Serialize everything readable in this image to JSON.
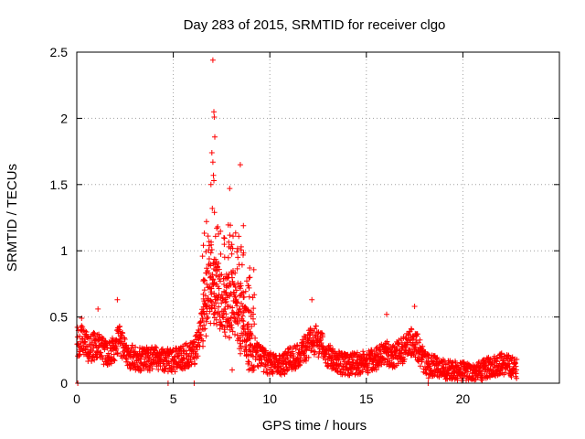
{
  "chart_data": {
    "type": "scatter",
    "title": "Day 283 of 2015, SRMTID for receiver clgo",
    "xlabel": "GPS time / hours",
    "ylabel": "SRMTID / TECUs",
    "xlim": [
      0,
      25
    ],
    "ylim": [
      0,
      2.5
    ],
    "xticks": [
      0,
      5,
      10,
      15,
      20
    ],
    "xtick_labels": [
      "0",
      "5",
      "10",
      "15",
      "20"
    ],
    "yticks": [
      0,
      0.5,
      1,
      1.5,
      2,
      2.5
    ],
    "ytick_labels": [
      "0",
      "0.5",
      "1",
      "1.5",
      "2",
      "2.5"
    ],
    "grid": true,
    "marker": "+",
    "marker_color": "#ff0000",
    "series": [
      {
        "name": "SRMTID",
        "profile": {
          "description": "approximate running level (hours, TECU) read from the dense scatter",
          "x": [
            0.0,
            0.3,
            0.6,
            1.0,
            1.5,
            2.0,
            2.2,
            2.6,
            3.0,
            3.5,
            4.0,
            4.5,
            5.0,
            5.5,
            6.0,
            6.3,
            6.6,
            6.9,
            7.1,
            7.4,
            7.7,
            8.0,
            8.3,
            8.6,
            9.0,
            9.4,
            9.8,
            10.2,
            10.6,
            11.0,
            11.5,
            12.0,
            12.3,
            12.7,
            13.0,
            13.5,
            14.0,
            14.5,
            15.0,
            15.5,
            16.0,
            16.5,
            17.0,
            17.3,
            17.6,
            18.0,
            18.5,
            19.0,
            19.5,
            20.0,
            20.5,
            21.0,
            21.5,
            22.0,
            22.5,
            22.8
          ],
          "y": [
            0.3,
            0.32,
            0.25,
            0.27,
            0.22,
            0.25,
            0.32,
            0.2,
            0.18,
            0.17,
            0.18,
            0.17,
            0.16,
            0.19,
            0.21,
            0.28,
            0.55,
            0.72,
            0.7,
            0.62,
            0.55,
            0.6,
            0.55,
            0.45,
            0.3,
            0.2,
            0.15,
            0.13,
            0.12,
            0.17,
            0.2,
            0.28,
            0.32,
            0.28,
            0.2,
            0.15,
            0.13,
            0.14,
            0.15,
            0.17,
            0.22,
            0.2,
            0.25,
            0.3,
            0.28,
            0.15,
            0.12,
            0.1,
            0.09,
            0.08,
            0.07,
            0.09,
            0.12,
            0.14,
            0.12,
            0.1
          ]
        },
        "highlights": {
          "description": "notable isolated points (hours, TECU)",
          "points": [
            [
              7.05,
              2.44
            ],
            [
              7.1,
              2.05
            ],
            [
              7.12,
              2.01
            ],
            [
              7.15,
              1.86
            ],
            [
              7.0,
              1.74
            ],
            [
              7.05,
              1.67
            ],
            [
              7.08,
              1.57
            ],
            [
              7.1,
              1.53
            ],
            [
              6.95,
              1.5
            ],
            [
              8.47,
              1.65
            ],
            [
              7.92,
              1.47
            ],
            [
              8.63,
              1.19
            ],
            [
              7.02,
              1.32
            ],
            [
              7.13,
              1.29
            ],
            [
              6.72,
              1.22
            ],
            [
              7.25,
              1.17
            ],
            [
              6.85,
              1.07
            ],
            [
              8.52,
              1.03
            ],
            [
              2.1,
              0.63
            ],
            [
              12.18,
              0.63
            ],
            [
              17.5,
              0.58
            ],
            [
              16.05,
              0.52
            ],
            [
              0.25,
              0.49
            ],
            [
              1.1,
              0.56
            ],
            [
              0.05,
              0.0
            ],
            [
              8.05,
              0.1
            ],
            [
              18.2,
              0.0
            ],
            [
              18.22,
              0.04
            ],
            [
              6.08,
              0.0
            ],
            [
              4.73,
              0.0
            ]
          ]
        }
      }
    ]
  }
}
